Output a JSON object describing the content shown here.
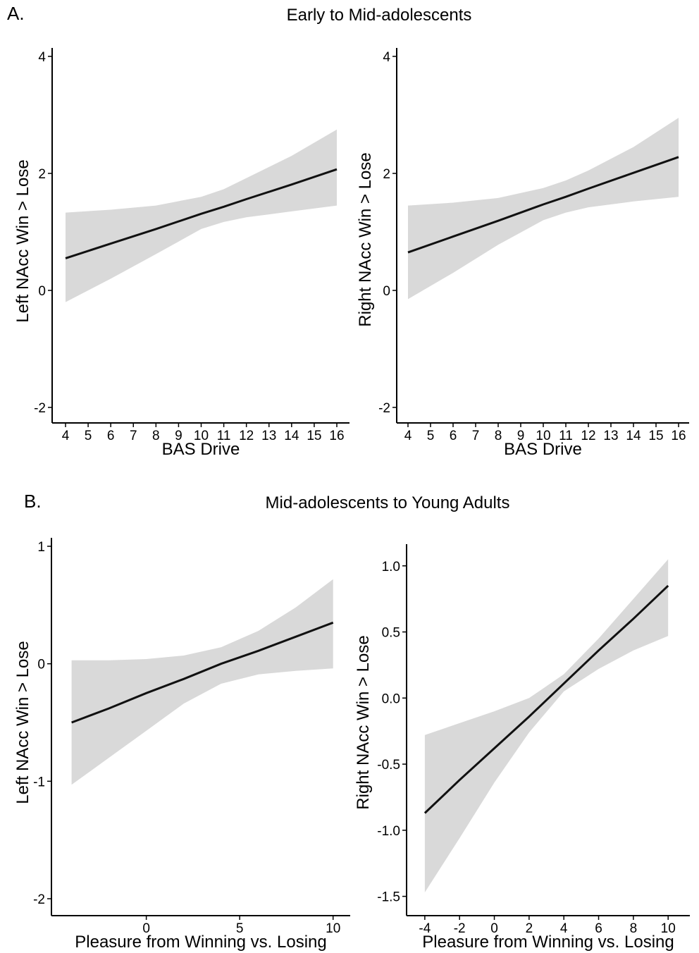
{
  "panels": {
    "a": {
      "letter": "A.",
      "title": "Early to Mid-adolescents"
    },
    "b": {
      "letter": "B.",
      "title": "Mid-adolescents to Young Adults"
    }
  },
  "colors": {
    "line": "#111111",
    "band": "#d9d9d9",
    "axis": "#000000"
  },
  "chart_data": [
    {
      "type": "line",
      "panel": "A",
      "title": "",
      "xlabel": "BAS Drive",
      "ylabel": "Left NAcc Win > Lose",
      "xlim": [
        4,
        16
      ],
      "ylim": [
        -2,
        4
      ],
      "xticks": [
        4,
        5,
        6,
        7,
        8,
        9,
        10,
        11,
        12,
        13,
        14,
        15,
        16
      ],
      "xticklabels": [
        "4",
        "5",
        "6",
        "7",
        "8",
        "9",
        "10",
        "11",
        "12",
        "13",
        "14",
        "15",
        "16"
      ],
      "yticks": [
        -2,
        0,
        2,
        4
      ],
      "yticklabels": [
        "-2",
        "0",
        "2",
        "4"
      ],
      "series": [
        {
          "x": [
            4,
            6,
            8,
            10,
            11,
            12,
            14,
            16
          ],
          "fit": [
            0.55,
            0.8,
            1.05,
            1.31,
            1.43,
            1.56,
            1.81,
            2.07
          ],
          "upper": [
            1.33,
            1.38,
            1.45,
            1.6,
            1.73,
            1.92,
            2.3,
            2.75
          ],
          "lower": [
            -0.2,
            0.2,
            0.62,
            1.05,
            1.17,
            1.25,
            1.35,
            1.45
          ]
        }
      ]
    },
    {
      "type": "line",
      "panel": "A",
      "title": "",
      "xlabel": "BAS Drive",
      "ylabel": "Right NAcc Win > Lose",
      "xlim": [
        4,
        16
      ],
      "ylim": [
        -2,
        4
      ],
      "xticks": [
        4,
        5,
        6,
        7,
        8,
        9,
        10,
        11,
        12,
        13,
        14,
        15,
        16
      ],
      "xticklabels": [
        "4",
        "5",
        "6",
        "7",
        "8",
        "9",
        "10",
        "11",
        "12",
        "13",
        "14",
        "15",
        "16"
      ],
      "yticks": [
        -2,
        0,
        2,
        4
      ],
      "yticklabels": [
        "-2",
        "0",
        "2",
        "4"
      ],
      "series": [
        {
          "x": [
            4,
            6,
            8,
            10,
            11,
            12,
            14,
            16
          ],
          "fit": [
            0.65,
            0.92,
            1.19,
            1.47,
            1.6,
            1.74,
            2.01,
            2.28
          ],
          "upper": [
            1.45,
            1.5,
            1.58,
            1.75,
            1.88,
            2.05,
            2.45,
            2.95
          ],
          "lower": [
            -0.15,
            0.3,
            0.78,
            1.2,
            1.33,
            1.42,
            1.52,
            1.6
          ]
        }
      ]
    },
    {
      "type": "line",
      "panel": "B",
      "title": "",
      "xlabel": "Pleasure from Winning vs. Losing",
      "ylabel": "Left NAcc Win > Lose",
      "xlim": [
        -4.4,
        10.2
      ],
      "ylim": [
        -2,
        1
      ],
      "xticks": [
        0,
        5,
        10
      ],
      "xticklabels": [
        "0",
        "5",
        "10"
      ],
      "yticks": [
        -2,
        -1,
        0,
        1
      ],
      "yticklabels": [
        "-2",
        "-1",
        "0",
        "1"
      ],
      "series": [
        {
          "x": [
            -4,
            -2,
            0,
            2,
            4,
            6,
            8,
            10
          ],
          "fit": [
            -0.5,
            -0.38,
            -0.25,
            -0.13,
            0.0,
            0.11,
            0.23,
            0.35
          ],
          "upper": [
            0.03,
            0.03,
            0.04,
            0.07,
            0.14,
            0.28,
            0.48,
            0.72
          ],
          "lower": [
            -1.03,
            -0.8,
            -0.57,
            -0.34,
            -0.17,
            -0.09,
            -0.06,
            -0.04
          ]
        }
      ]
    },
    {
      "type": "line",
      "panel": "B",
      "title": "",
      "xlabel": "Pleasure from Winning vs. Losing",
      "ylabel": "Right NAcc Win > Lose",
      "xlim": [
        -4.4,
        10.6
      ],
      "ylim": [
        -1.55,
        1.1
      ],
      "xticks": [
        -4,
        -2,
        0,
        2,
        4,
        6,
        8,
        10
      ],
      "xticklabels": [
        "-4",
        "-2",
        "0",
        "2",
        "4",
        "6",
        "8",
        "10"
      ],
      "yticks": [
        -1.5,
        -1.0,
        -0.5,
        0.0,
        0.5,
        1.0
      ],
      "yticklabels": [
        "-1.5",
        "-1.0",
        "-0.5",
        "0.0",
        "0.5",
        "1.0"
      ],
      "series": [
        {
          "x": [
            -4,
            -2,
            0,
            2,
            4,
            6,
            8,
            10
          ],
          "fit": [
            -0.87,
            -0.62,
            -0.38,
            -0.14,
            0.11,
            0.36,
            0.6,
            0.85
          ],
          "upper": [
            -0.28,
            -0.19,
            -0.1,
            0.0,
            0.18,
            0.45,
            0.75,
            1.05
          ],
          "lower": [
            -1.47,
            -1.06,
            -0.64,
            -0.26,
            0.05,
            0.22,
            0.36,
            0.47
          ]
        }
      ]
    }
  ]
}
